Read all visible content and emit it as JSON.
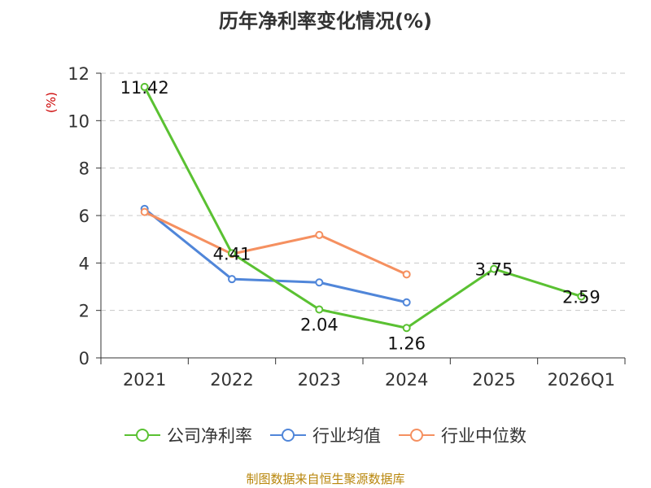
{
  "chart_data": {
    "type": "line",
    "title": "历年净利率变化情况(%)",
    "ylabel": "(%)",
    "xlabel": "",
    "categories": [
      "2021",
      "2022",
      "2023",
      "2024",
      "2025",
      "2026Q1"
    ],
    "ylim": [
      0,
      12
    ],
    "yticks": [
      0,
      2,
      4,
      6,
      8,
      10,
      12
    ],
    "grid": true,
    "legend_position": "bottom",
    "series": [
      {
        "name": "公司净利率",
        "color": "#5ac132",
        "values": [
          11.42,
          4.41,
          2.04,
          1.26,
          3.75,
          2.59
        ],
        "labels": [
          "11.42",
          "4.41",
          "2.04",
          "1.26",
          "3.75",
          "2.59"
        ]
      },
      {
        "name": "行业均值",
        "color": "#5086d9",
        "values": [
          6.28,
          3.32,
          3.18,
          2.34,
          null,
          null
        ]
      },
      {
        "name": "行业中位数",
        "color": "#f59060",
        "values": [
          6.15,
          4.38,
          5.18,
          3.52,
          null,
          null
        ]
      }
    ]
  },
  "footer": {
    "source": "制图数据来自恒生聚源数据库"
  }
}
